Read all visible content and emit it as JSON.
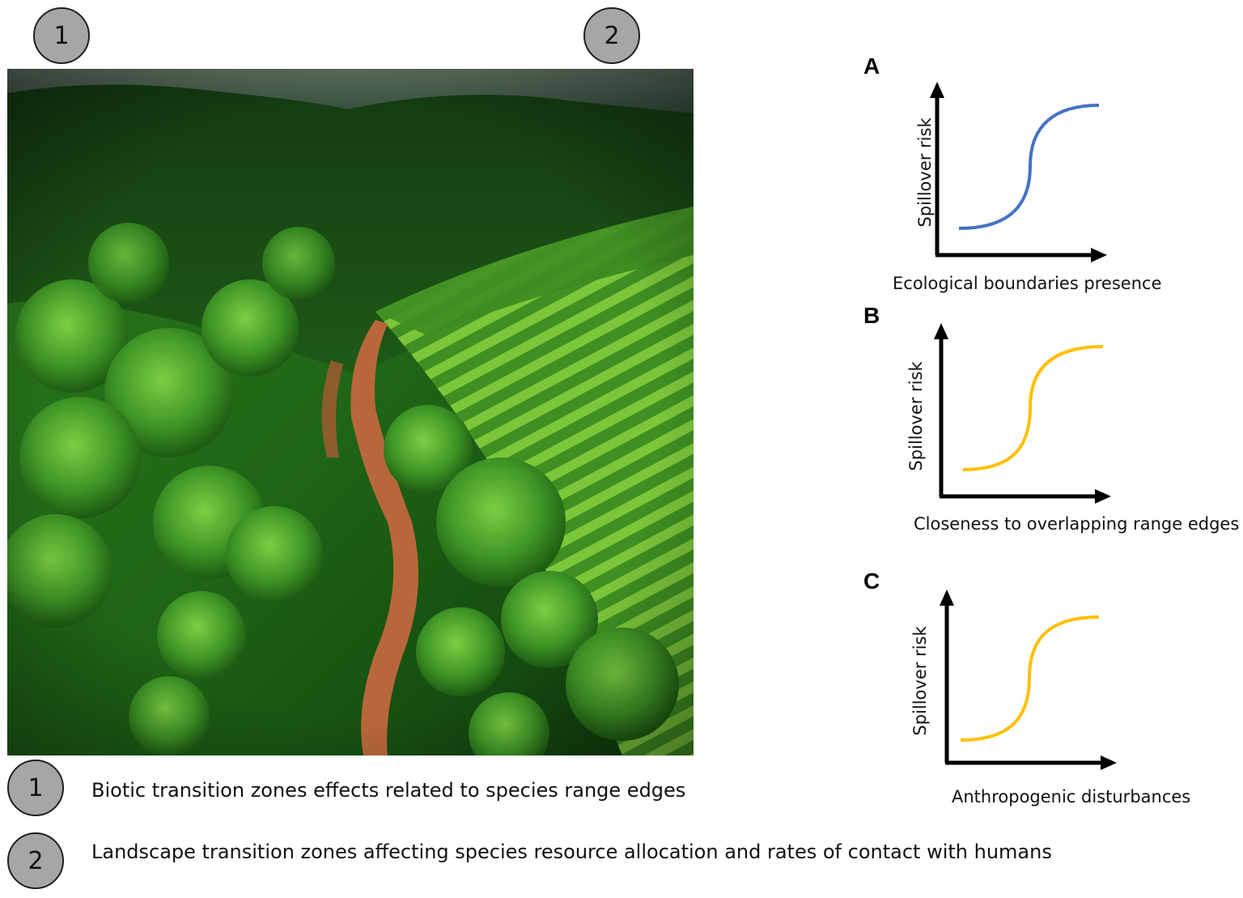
{
  "markers": {
    "marker1": "1",
    "marker2": "2"
  },
  "panels": [
    {
      "letter": "A",
      "xlabel": "Ecological boundaries presence",
      "ylabel": "Spillover risk",
      "curve_color": "#4472c4"
    },
    {
      "letter": "B",
      "xlabel": "Closeness to overlapping range edges",
      "ylabel": "Spillover risk",
      "curve_color": "#ffc000"
    },
    {
      "letter": "C",
      "xlabel": "Anthropogenic disturbances",
      "ylabel": "Spillover risk",
      "curve_color": "#ffc000"
    }
  ],
  "legend": [
    {
      "number": "1",
      "text": "Biotic transition zones effects related to species range edges"
    },
    {
      "number": "2",
      "text": "Landscape transition zones affecting species resource allocation and rates of contact with humans"
    }
  ],
  "colors": {
    "badge_fill": "#a6a6a6",
    "badge_border": "#1f1f1f",
    "axis": "#000000"
  }
}
